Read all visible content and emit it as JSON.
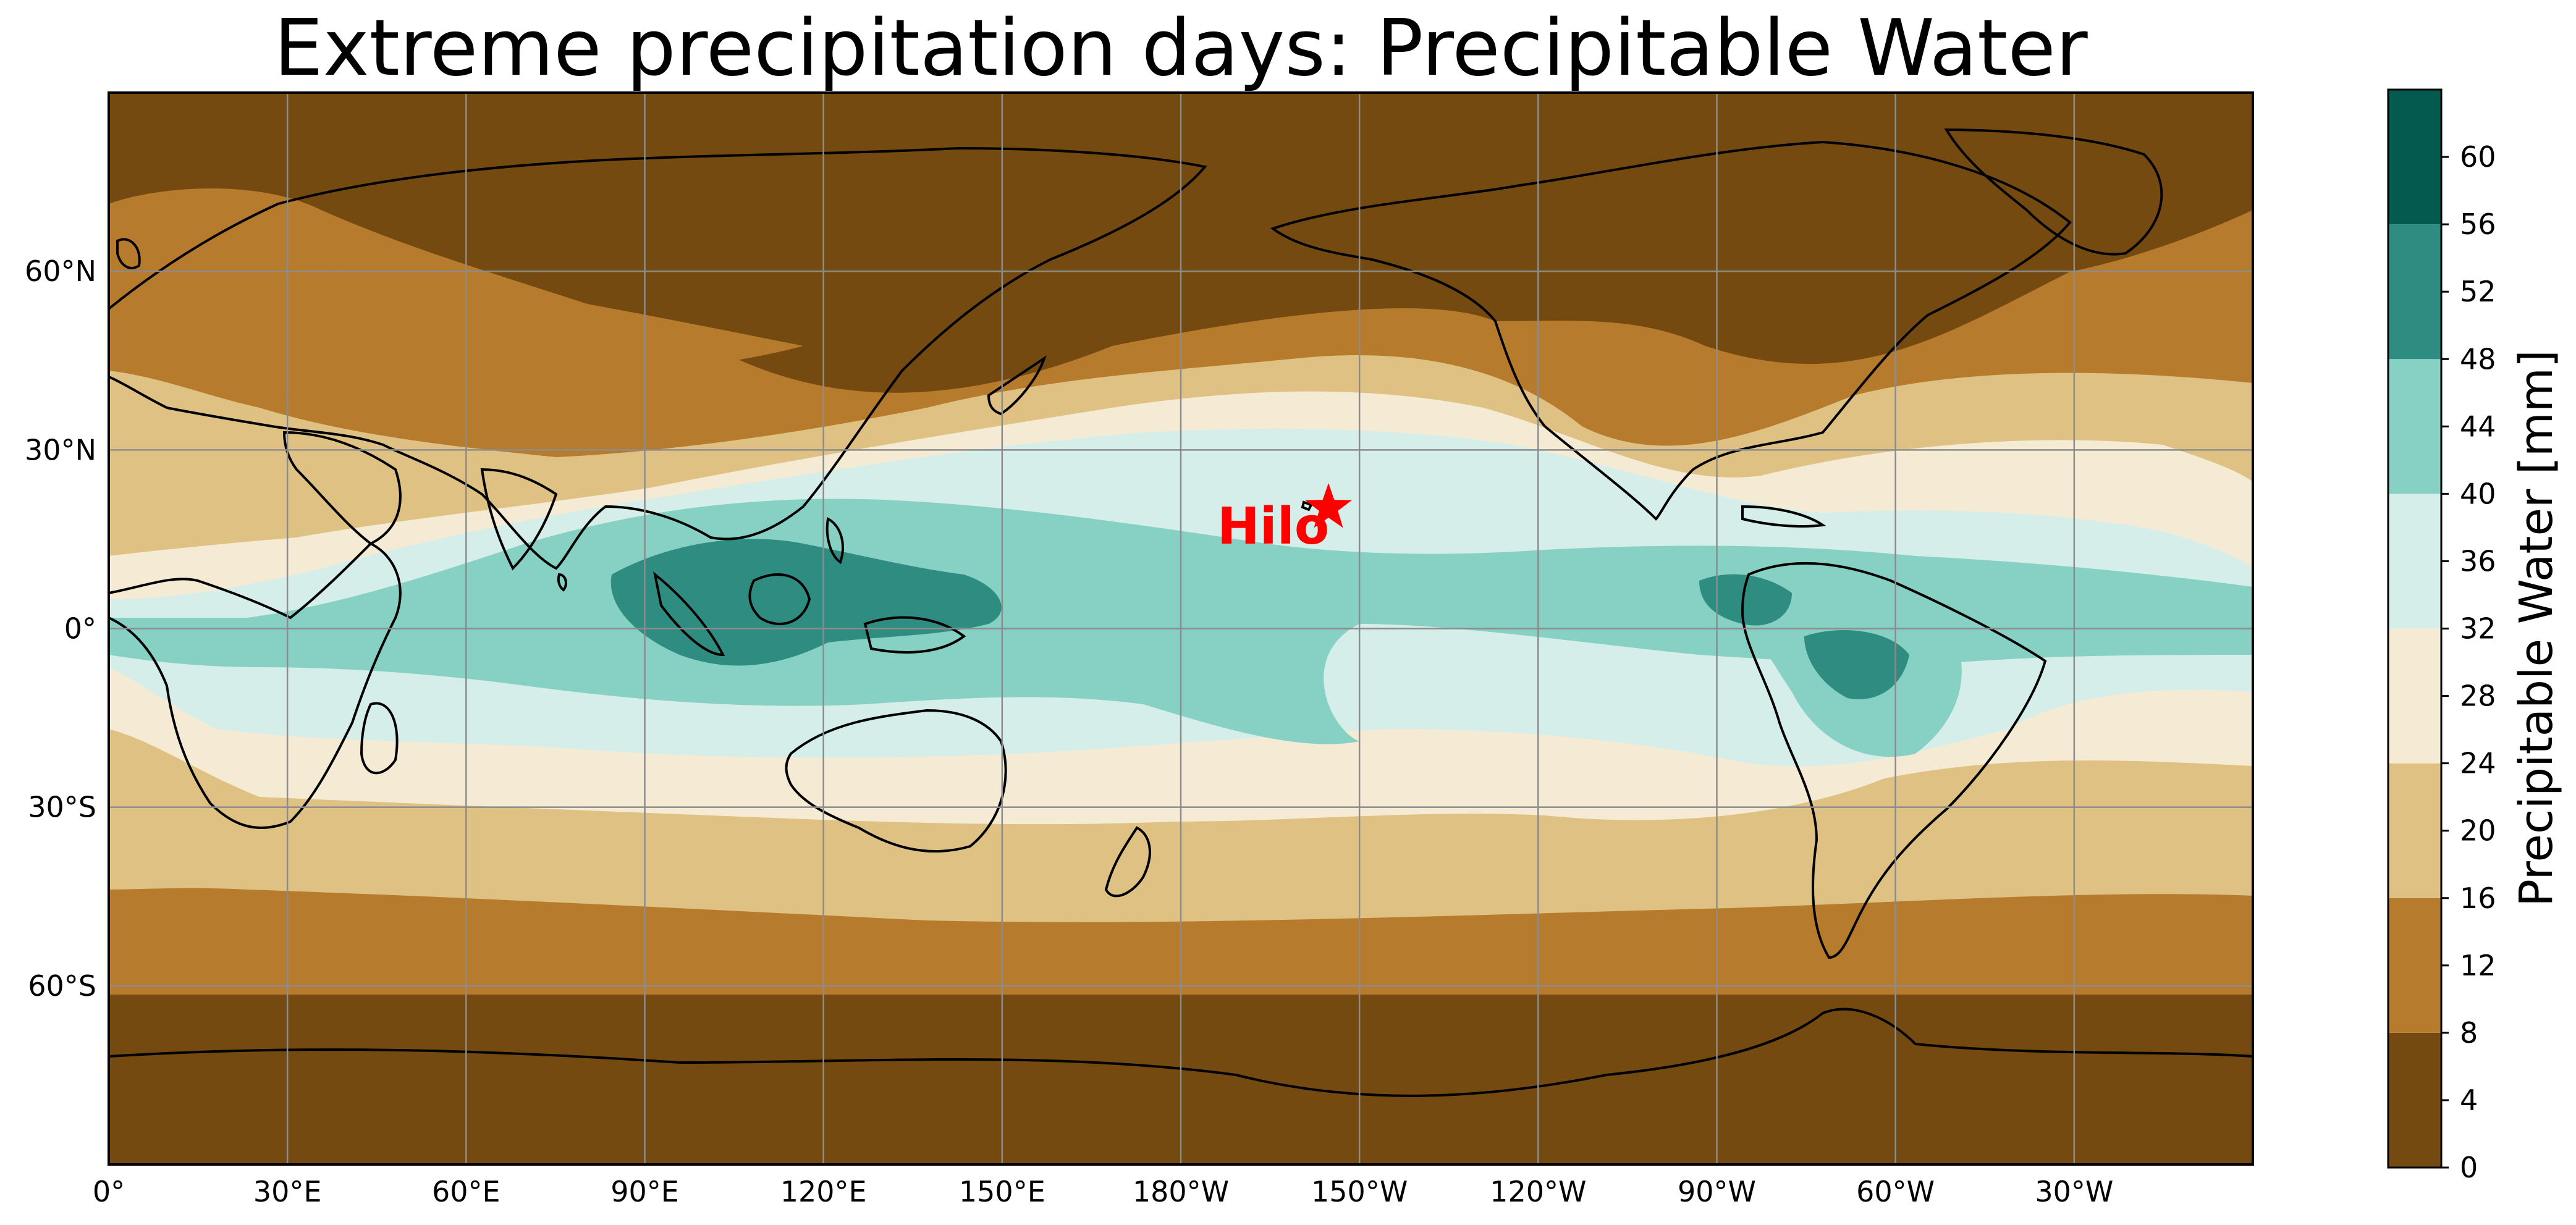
{
  "title": "Extreme precipitation days: Precipitable Water",
  "colorbar": {
    "label": "Precipitable Water [mm]",
    "ticks": [
      "0",
      "4",
      "8",
      "12",
      "16",
      "20",
      "24",
      "28",
      "32",
      "36",
      "40",
      "44",
      "48",
      "52",
      "56",
      "60"
    ],
    "range": [
      0,
      64
    ],
    "levels": [
      0,
      8,
      16,
      24,
      32,
      40,
      48,
      56,
      64
    ],
    "colors": [
      "#744a10",
      "#b67b2c",
      "#dfc283",
      "#f5ebd4",
      "#d6eee9",
      "#86d0c4",
      "#2e8c81",
      "#055a4f"
    ]
  },
  "axes": {
    "x_ticks": [
      "0°",
      "30°E",
      "60°E",
      "90°E",
      "120°E",
      "150°E",
      "180°W",
      "150°W",
      "120°W",
      "90°W",
      "60°W",
      "30°W"
    ],
    "y_ticks": [
      "60°N",
      "30°N",
      "0°",
      "30°S",
      "60°S"
    ]
  },
  "marker": {
    "name": "Hilo",
    "color": "#ff0000"
  }
}
